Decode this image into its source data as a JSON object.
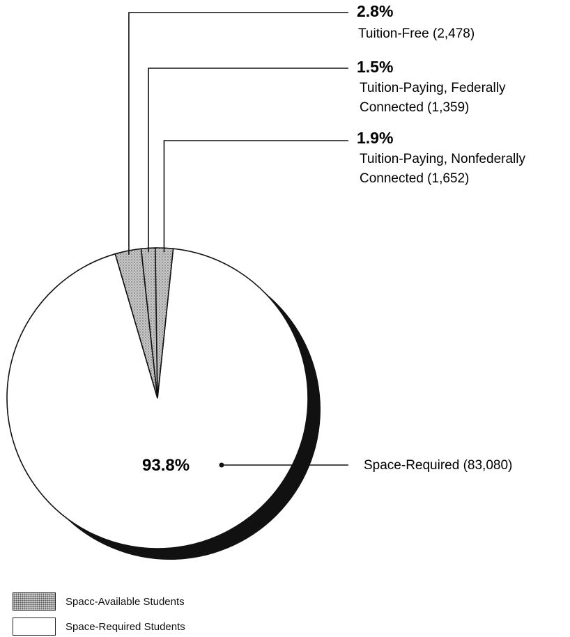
{
  "colors": {
    "shadow": "#111111",
    "space_available_fill": "#c9c9c9",
    "space_required_fill": "#ffffff",
    "ink": "#111111"
  },
  "chart_data": {
    "type": "pie",
    "title": "",
    "slices": [
      {
        "percent": 93.8,
        "percent_label": "93.8%",
        "label": "Space-Required (83,080)",
        "category": "Space-Required Students"
      },
      {
        "percent": 2.8,
        "percent_label": "2.8%",
        "label": "Tuition-Free (2,478)",
        "category": "Space-Available Students"
      },
      {
        "percent": 1.5,
        "percent_label": "1.5%",
        "label_lines": [
          "Tuition-Paying, Federally",
          "Connected (1,359)"
        ],
        "category": "Space-Available Students"
      },
      {
        "percent": 1.9,
        "percent_label": "1.9%",
        "label_lines": [
          "Tuition-Paying, Nonfederally",
          "Connected (1,652)"
        ],
        "category": "Space-Available Students"
      }
    ],
    "legend": {
      "placement": "bottom-left",
      "items": [
        {
          "label": "Spacc-Available Students",
          "pattern": "dotted"
        },
        {
          "label": "Space-Required Students",
          "pattern": "plain"
        }
      ]
    }
  }
}
